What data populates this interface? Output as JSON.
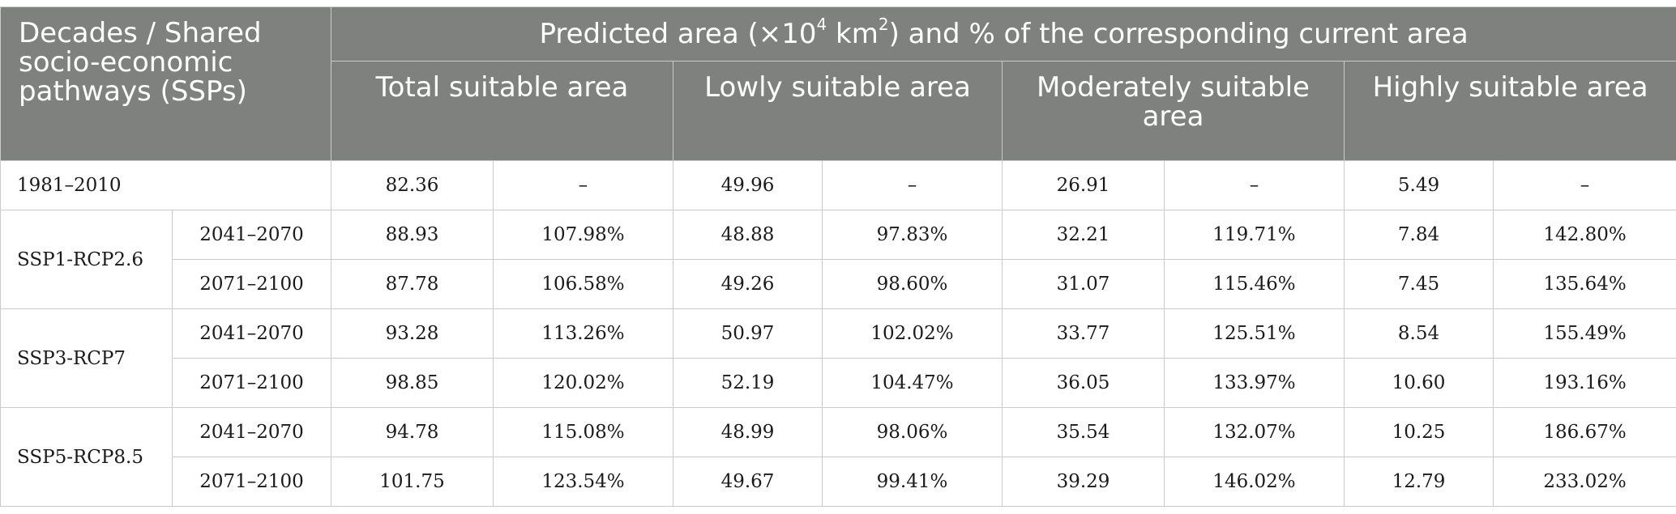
{
  "header": {
    "corner": "Decades / Shared socio-economic pathways (SSPs)",
    "span_pre": "Predicted area (×10",
    "span_sup1": "4",
    "span_mid": " km",
    "span_sup2": "2",
    "span_post": ") and % of the corresponding current area",
    "groups": [
      "Total suitable area",
      "Lowly suitable area",
      "Moderately suitable area",
      "Highly suitable area"
    ]
  },
  "baseline": {
    "label": "1981–2010",
    "cells": [
      "82.36",
      "–",
      "49.96",
      "–",
      "26.91",
      "–",
      "5.49",
      "–"
    ]
  },
  "scenarios": [
    {
      "name": "SSP1-RCP2.6",
      "rows": [
        {
          "period": "2041–2070",
          "cells": [
            "88.93",
            "107.98%",
            "48.88",
            "97.83%",
            "32.21",
            "119.71%",
            "7.84",
            "142.80%"
          ]
        },
        {
          "period": "2071–2100",
          "cells": [
            "87.78",
            "106.58%",
            "49.26",
            "98.60%",
            "31.07",
            "115.46%",
            "7.45",
            "135.64%"
          ]
        }
      ]
    },
    {
      "name": "SSP3-RCP7",
      "rows": [
        {
          "period": "2041–2070",
          "cells": [
            "93.28",
            "113.26%",
            "50.97",
            "102.02%",
            "33.77",
            "125.51%",
            "8.54",
            "155.49%"
          ]
        },
        {
          "period": "2071–2100",
          "cells": [
            "98.85",
            "120.02%",
            "52.19",
            "104.47%",
            "36.05",
            "133.97%",
            "10.60",
            "193.16%"
          ]
        }
      ]
    },
    {
      "name": "SSP5-RCP8.5",
      "rows": [
        {
          "period": "2041–2070",
          "cells": [
            "94.78",
            "115.08%",
            "48.99",
            "98.06%",
            "35.54",
            "132.07%",
            "10.25",
            "186.67%"
          ]
        },
        {
          "period": "2071–2100",
          "cells": [
            "101.75",
            "123.54%",
            "49.67",
            "99.41%",
            "39.29",
            "146.02%",
            "12.79",
            "233.02%"
          ]
        }
      ]
    }
  ]
}
